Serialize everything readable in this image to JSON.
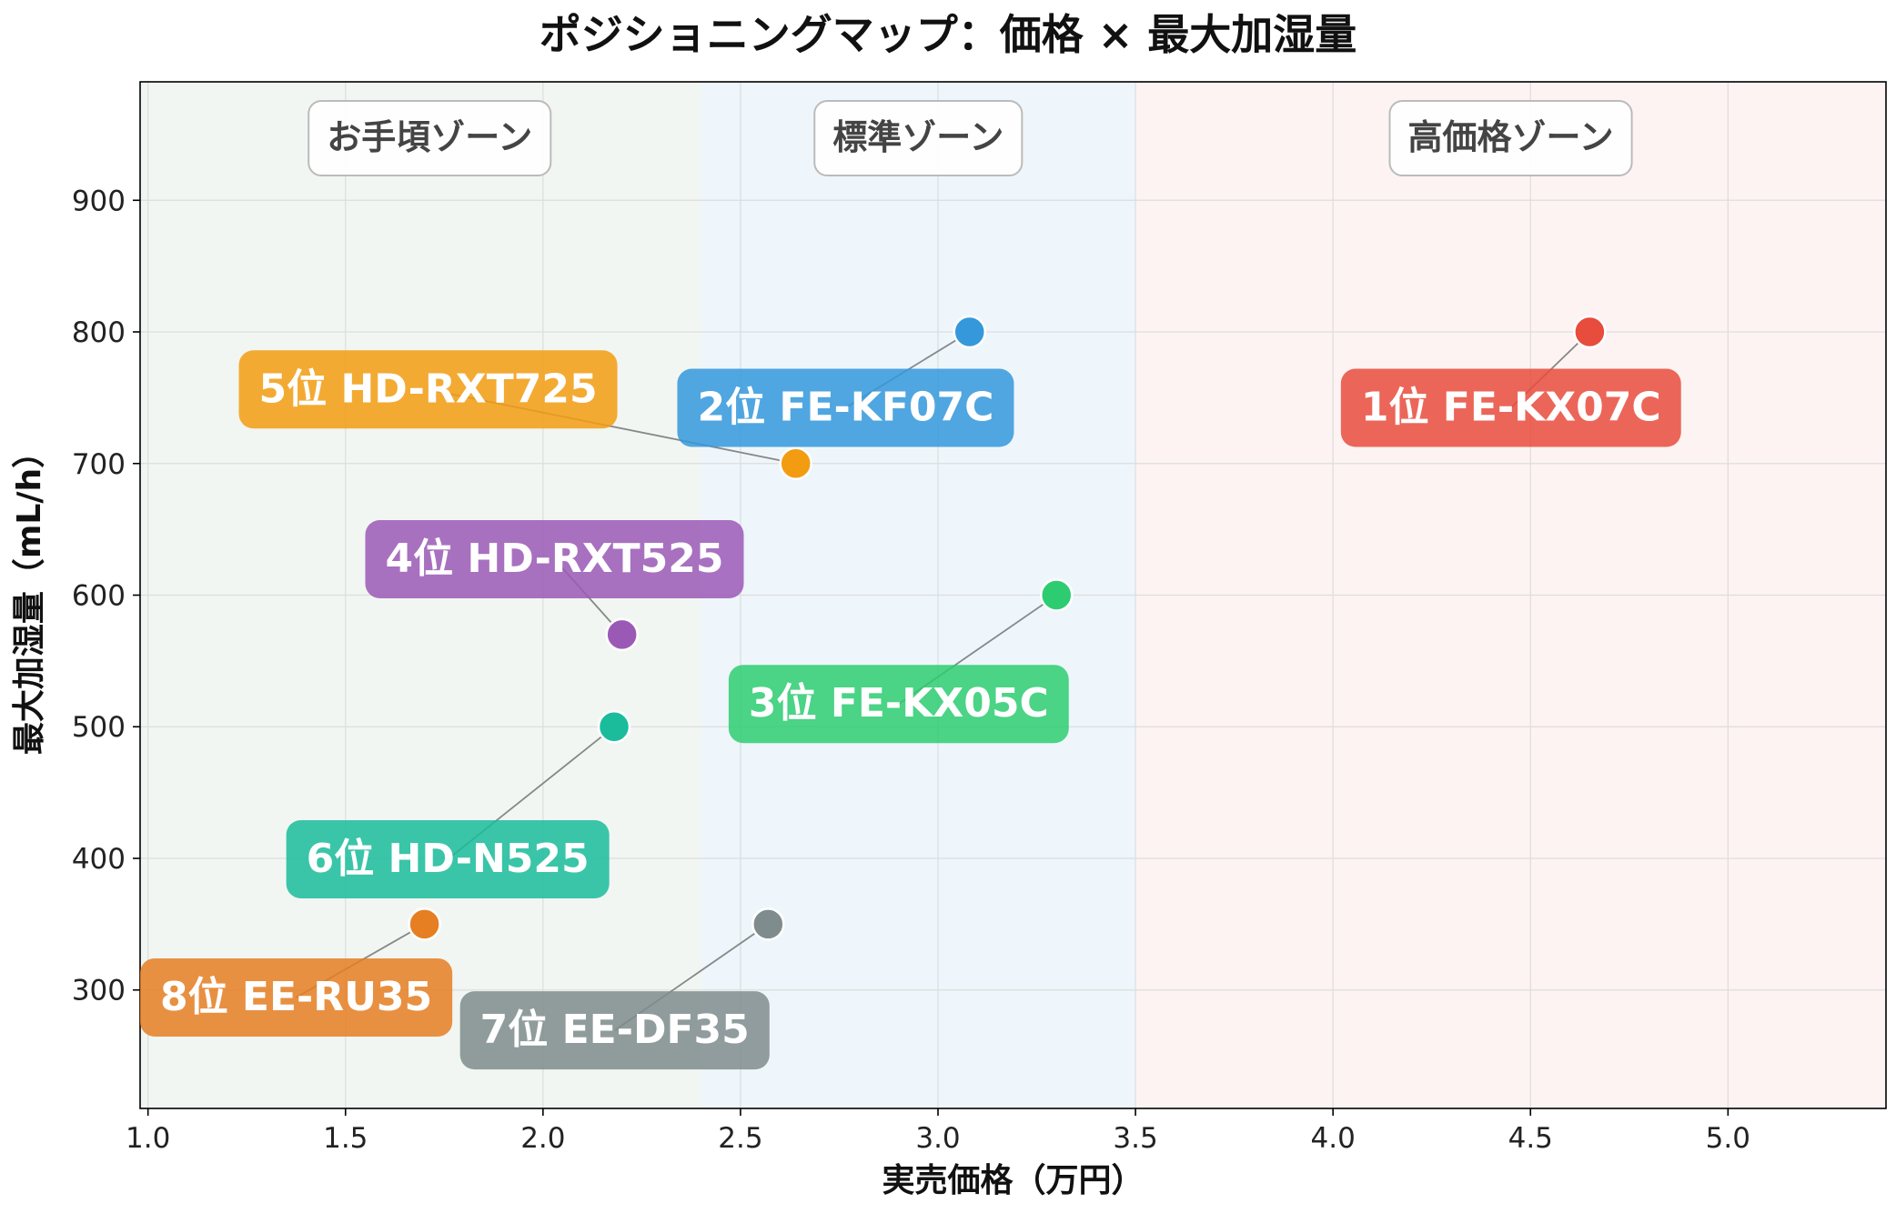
{
  "chart_data": {
    "type": "scatter",
    "title": "ポジショニングマップ：価格 × 最大加湿量",
    "xlabel": "実売価格（万円）",
    "ylabel": "最大加湿量（mL/h）",
    "xlim": [
      0.98,
      5.4
    ],
    "ylim": [
      210,
      990
    ],
    "xticks": [
      1.0,
      1.5,
      2.0,
      2.5,
      3.0,
      3.5,
      4.0,
      4.5,
      5.0
    ],
    "xtick_labels": [
      "1.0",
      "1.5",
      "2.0",
      "2.5",
      "3.0",
      "3.5",
      "4.0",
      "4.5",
      "5.0"
    ],
    "yticks": [
      300,
      400,
      500,
      600,
      700,
      800,
      900
    ],
    "ytick_labels": [
      "300",
      "400",
      "500",
      "600",
      "700",
      "800",
      "900"
    ],
    "grid": true,
    "zones": [
      {
        "label": "お手頃ゾーン",
        "x_range": [
          0.98,
          2.4
        ],
        "color": "#f2f6f2"
      },
      {
        "label": "標準ゾーン",
        "x_range": [
          2.4,
          3.5
        ],
        "color": "#eef6fb"
      },
      {
        "label": "高価格ゾーン",
        "x_range": [
          3.5,
          5.4
        ],
        "color": "#fdf3f3"
      }
    ],
    "points": [
      {
        "label": "1位 FE-KX07C",
        "x": 4.65,
        "y": 800,
        "color": "#e74c3c",
        "label_x": 4.02,
        "label_y": 743
      },
      {
        "label": "2位 FE-KF07C",
        "x": 3.08,
        "y": 800,
        "color": "#3498db",
        "label_x": 2.34,
        "label_y": 743
      },
      {
        "label": "3位 FE-KX05C",
        "x": 3.3,
        "y": 600,
        "color": "#2ecc71",
        "label_x": 2.47,
        "label_y": 518
      },
      {
        "label": "4位 HD-RXT525",
        "x": 2.2,
        "y": 570,
        "color": "#9b59b6",
        "label_x": 1.55,
        "label_y": 628
      },
      {
        "label": "5位 HD-RXT725",
        "x": 2.64,
        "y": 700,
        "color": "#f39c12",
        "label_x": 1.23,
        "label_y": 757
      },
      {
        "label": "6位 HD-N525",
        "x": 2.18,
        "y": 500,
        "color": "#1abc9c",
        "label_x": 1.35,
        "label_y": 400
      },
      {
        "label": "7位 EE-DF35",
        "x": 2.57,
        "y": 350,
        "color": "#7f8c8d",
        "label_x": 1.79,
        "label_y": 270
      },
      {
        "label": "8位 EE-RU35",
        "x": 1.7,
        "y": 350,
        "color": "#e67e22",
        "label_x": 0.98,
        "label_y": 295
      }
    ]
  }
}
